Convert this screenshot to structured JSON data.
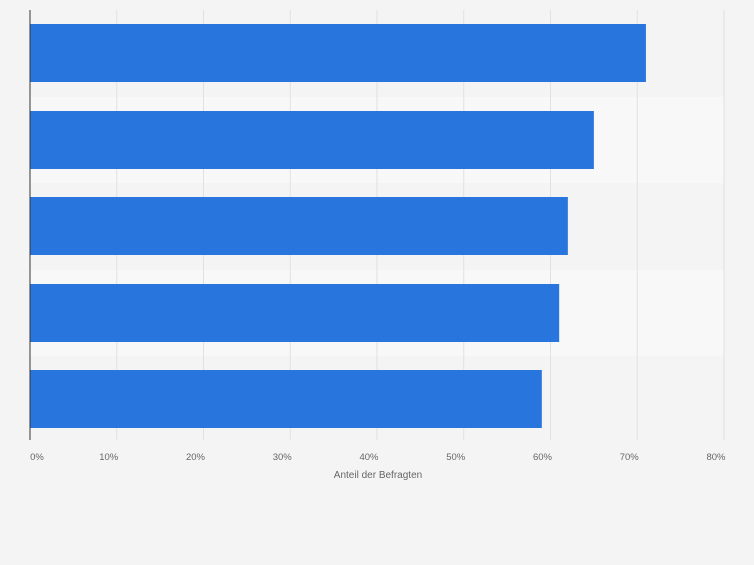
{
  "chart_data": {
    "type": "bar",
    "orientation": "horizontal",
    "categories": [
      "",
      "",
      "",
      "",
      ""
    ],
    "values": [
      71,
      65,
      62,
      61,
      59
    ],
    "xlabel": "Anteil der Befragten",
    "ylabel": "",
    "xlim": [
      0,
      80
    ],
    "ticks": [
      "0%",
      "10%",
      "20%",
      "30%",
      "40%",
      "50%",
      "60%",
      "70%",
      "80%"
    ],
    "grid": true,
    "bar_color": "#2876dd",
    "band_colors": [
      "#f4f4f4",
      "#f8f8f8"
    ],
    "gridline_color": "#e1e1e1",
    "axis_color": "#333333",
    "tick_label_color": "#666666"
  }
}
